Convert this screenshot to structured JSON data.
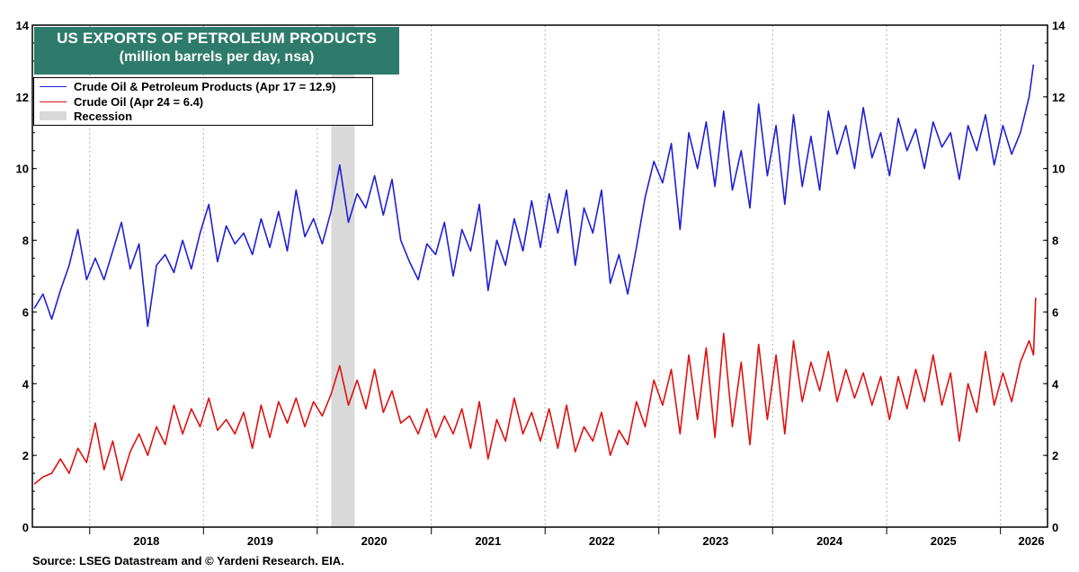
{
  "chart_data": {
    "type": "line",
    "title": "US EXPORTS OF PETROLEUM PRODUCTS",
    "subtitle": "(million barrels per day, nsa)",
    "xlabel": "",
    "ylabel": "",
    "ylim": [
      0,
      14
    ],
    "yticks": [
      "0",
      "2",
      "4",
      "6",
      "8",
      "10",
      "12",
      "14"
    ],
    "xlim": [
      "2017-07-01",
      "2026-06-01"
    ],
    "xticks": [
      "2018",
      "2019",
      "2020",
      "2021",
      "2022",
      "2023",
      "2024",
      "2025",
      "2026"
    ],
    "grid": true,
    "legend_position": "top-left",
    "recession": {
      "label": "Recession",
      "start": "2020-02-15",
      "end": "2020-04-30",
      "color": "#d9d9d9"
    },
    "series": [
      {
        "name": "Crude Oil & Petroleum Products",
        "legend_label": "Crude Oil & Petroleum Products  (Apr 17 = 12.9)",
        "color": "#1f1fd6",
        "points": [
          [
            "2017-07-07",
            6.1
          ],
          [
            "2017-08-04",
            6.5
          ],
          [
            "2017-09-01",
            5.8
          ],
          [
            "2017-09-29",
            6.6
          ],
          [
            "2017-10-27",
            7.3
          ],
          [
            "2017-11-24",
            8.3
          ],
          [
            "2017-12-22",
            6.9
          ],
          [
            "2018-01-19",
            7.5
          ],
          [
            "2018-02-16",
            6.9
          ],
          [
            "2018-03-16",
            7.7
          ],
          [
            "2018-04-13",
            8.5
          ],
          [
            "2018-05-11",
            7.2
          ],
          [
            "2018-06-08",
            7.9
          ],
          [
            "2018-07-06",
            5.6
          ],
          [
            "2018-08-03",
            7.3
          ],
          [
            "2018-08-31",
            7.6
          ],
          [
            "2018-09-28",
            7.1
          ],
          [
            "2018-10-26",
            8.0
          ],
          [
            "2018-11-23",
            7.2
          ],
          [
            "2018-12-21",
            8.2
          ],
          [
            "2019-01-18",
            9.0
          ],
          [
            "2019-02-15",
            7.4
          ],
          [
            "2019-03-15",
            8.4
          ],
          [
            "2019-04-12",
            7.9
          ],
          [
            "2019-05-10",
            8.2
          ],
          [
            "2019-06-07",
            7.6
          ],
          [
            "2019-07-05",
            8.6
          ],
          [
            "2019-08-02",
            7.8
          ],
          [
            "2019-08-30",
            8.8
          ],
          [
            "2019-09-27",
            7.7
          ],
          [
            "2019-10-25",
            9.4
          ],
          [
            "2019-11-22",
            8.1
          ],
          [
            "2019-12-20",
            8.6
          ],
          [
            "2020-01-17",
            7.9
          ],
          [
            "2020-02-14",
            8.8
          ],
          [
            "2020-03-13",
            10.1
          ],
          [
            "2020-04-10",
            8.5
          ],
          [
            "2020-05-08",
            9.3
          ],
          [
            "2020-06-05",
            8.9
          ],
          [
            "2020-07-03",
            9.8
          ],
          [
            "2020-07-31",
            8.7
          ],
          [
            "2020-08-28",
            9.7
          ],
          [
            "2020-09-25",
            8.0
          ],
          [
            "2020-10-23",
            7.4
          ],
          [
            "2020-11-20",
            6.9
          ],
          [
            "2020-12-18",
            7.9
          ],
          [
            "2021-01-15",
            7.6
          ],
          [
            "2021-02-12",
            8.5
          ],
          [
            "2021-03-12",
            7.0
          ],
          [
            "2021-04-09",
            8.3
          ],
          [
            "2021-05-07",
            7.7
          ],
          [
            "2021-06-04",
            9.0
          ],
          [
            "2021-07-02",
            6.6
          ],
          [
            "2021-07-30",
            8.0
          ],
          [
            "2021-08-27",
            7.3
          ],
          [
            "2021-09-24",
            8.6
          ],
          [
            "2021-10-22",
            7.7
          ],
          [
            "2021-11-19",
            9.1
          ],
          [
            "2021-12-17",
            7.8
          ],
          [
            "2022-01-14",
            9.3
          ],
          [
            "2022-02-11",
            8.2
          ],
          [
            "2022-03-11",
            9.4
          ],
          [
            "2022-04-08",
            7.3
          ],
          [
            "2022-05-06",
            8.9
          ],
          [
            "2022-06-03",
            8.2
          ],
          [
            "2022-07-01",
            9.4
          ],
          [
            "2022-07-29",
            6.8
          ],
          [
            "2022-08-26",
            7.6
          ],
          [
            "2022-09-23",
            6.5
          ],
          [
            "2022-10-21",
            7.8
          ],
          [
            "2022-11-18",
            9.2
          ],
          [
            "2022-12-16",
            10.2
          ],
          [
            "2023-01-13",
            9.6
          ],
          [
            "2023-02-10",
            10.7
          ],
          [
            "2023-03-10",
            8.3
          ],
          [
            "2023-04-07",
            11.0
          ],
          [
            "2023-05-05",
            10.0
          ],
          [
            "2023-06-02",
            11.3
          ],
          [
            "2023-06-30",
            9.5
          ],
          [
            "2023-07-28",
            11.6
          ],
          [
            "2023-08-25",
            9.4
          ],
          [
            "2023-09-22",
            10.5
          ],
          [
            "2023-10-20",
            8.9
          ],
          [
            "2023-11-17",
            11.8
          ],
          [
            "2023-12-15",
            9.8
          ],
          [
            "2024-01-12",
            11.2
          ],
          [
            "2024-02-09",
            9.0
          ],
          [
            "2024-03-08",
            11.5
          ],
          [
            "2024-04-05",
            9.5
          ],
          [
            "2024-05-03",
            10.9
          ],
          [
            "2024-05-31",
            9.4
          ],
          [
            "2024-06-28",
            11.6
          ],
          [
            "2024-07-26",
            10.4
          ],
          [
            "2024-08-23",
            11.2
          ],
          [
            "2024-09-20",
            10.0
          ],
          [
            "2024-10-18",
            11.7
          ],
          [
            "2024-11-15",
            10.3
          ],
          [
            "2024-12-13",
            11.0
          ],
          [
            "2025-01-10",
            9.8
          ],
          [
            "2025-02-07",
            11.4
          ],
          [
            "2025-03-07",
            10.5
          ],
          [
            "2025-04-04",
            11.1
          ],
          [
            "2025-05-02",
            10.0
          ],
          [
            "2025-05-30",
            11.3
          ],
          [
            "2025-06-27",
            10.6
          ],
          [
            "2025-07-25",
            11.0
          ],
          [
            "2025-08-22",
            9.7
          ],
          [
            "2025-09-19",
            11.2
          ],
          [
            "2025-10-17",
            10.5
          ],
          [
            "2025-11-14",
            11.5
          ],
          [
            "2025-12-12",
            10.1
          ],
          [
            "2026-01-09",
            11.2
          ],
          [
            "2026-02-06",
            10.4
          ],
          [
            "2026-03-06",
            11.0
          ],
          [
            "2026-04-03",
            12.0
          ],
          [
            "2026-04-17",
            12.9
          ]
        ]
      },
      {
        "name": "Crude Oil",
        "legend_label": "Crude Oil (Apr 24 = 6.4)",
        "color": "#e01010",
        "points": [
          [
            "2017-07-07",
            1.2
          ],
          [
            "2017-08-04",
            1.4
          ],
          [
            "2017-09-01",
            1.5
          ],
          [
            "2017-09-29",
            1.9
          ],
          [
            "2017-10-27",
            1.5
          ],
          [
            "2017-11-24",
            2.2
          ],
          [
            "2017-12-22",
            1.8
          ],
          [
            "2018-01-19",
            2.9
          ],
          [
            "2018-02-16",
            1.6
          ],
          [
            "2018-03-16",
            2.4
          ],
          [
            "2018-04-13",
            1.3
          ],
          [
            "2018-05-11",
            2.1
          ],
          [
            "2018-06-08",
            2.6
          ],
          [
            "2018-07-06",
            2.0
          ],
          [
            "2018-08-03",
            2.8
          ],
          [
            "2018-08-31",
            2.3
          ],
          [
            "2018-09-28",
            3.4
          ],
          [
            "2018-10-26",
            2.6
          ],
          [
            "2018-11-23",
            3.3
          ],
          [
            "2018-12-21",
            2.8
          ],
          [
            "2019-01-18",
            3.6
          ],
          [
            "2019-02-15",
            2.7
          ],
          [
            "2019-03-15",
            3.0
          ],
          [
            "2019-04-12",
            2.6
          ],
          [
            "2019-05-10",
            3.2
          ],
          [
            "2019-06-07",
            2.2
          ],
          [
            "2019-07-05",
            3.4
          ],
          [
            "2019-08-02",
            2.5
          ],
          [
            "2019-08-30",
            3.5
          ],
          [
            "2019-09-27",
            2.9
          ],
          [
            "2019-10-25",
            3.6
          ],
          [
            "2019-11-22",
            2.8
          ],
          [
            "2019-12-20",
            3.5
          ],
          [
            "2020-01-17",
            3.1
          ],
          [
            "2020-02-14",
            3.7
          ],
          [
            "2020-03-13",
            4.5
          ],
          [
            "2020-04-10",
            3.4
          ],
          [
            "2020-05-08",
            4.1
          ],
          [
            "2020-06-05",
            3.3
          ],
          [
            "2020-07-03",
            4.4
          ],
          [
            "2020-07-31",
            3.2
          ],
          [
            "2020-08-28",
            3.8
          ],
          [
            "2020-09-25",
            2.9
          ],
          [
            "2020-10-23",
            3.1
          ],
          [
            "2020-11-20",
            2.6
          ],
          [
            "2020-12-18",
            3.3
          ],
          [
            "2021-01-15",
            2.5
          ],
          [
            "2021-02-12",
            3.1
          ],
          [
            "2021-03-12",
            2.6
          ],
          [
            "2021-04-09",
            3.3
          ],
          [
            "2021-05-07",
            2.2
          ],
          [
            "2021-06-04",
            3.5
          ],
          [
            "2021-07-02",
            1.9
          ],
          [
            "2021-07-30",
            3.0
          ],
          [
            "2021-08-27",
            2.4
          ],
          [
            "2021-09-24",
            3.6
          ],
          [
            "2021-10-22",
            2.6
          ],
          [
            "2021-11-19",
            3.2
          ],
          [
            "2021-12-17",
            2.4
          ],
          [
            "2022-01-14",
            3.3
          ],
          [
            "2022-02-11",
            2.2
          ],
          [
            "2022-03-11",
            3.4
          ],
          [
            "2022-04-08",
            2.1
          ],
          [
            "2022-05-06",
            2.8
          ],
          [
            "2022-06-03",
            2.4
          ],
          [
            "2022-07-01",
            3.2
          ],
          [
            "2022-07-29",
            2.0
          ],
          [
            "2022-08-26",
            2.7
          ],
          [
            "2022-09-23",
            2.3
          ],
          [
            "2022-10-21",
            3.5
          ],
          [
            "2022-11-18",
            2.8
          ],
          [
            "2022-12-16",
            4.1
          ],
          [
            "2023-01-13",
            3.4
          ],
          [
            "2023-02-10",
            4.4
          ],
          [
            "2023-03-10",
            2.6
          ],
          [
            "2023-04-07",
            4.8
          ],
          [
            "2023-05-05",
            3.0
          ],
          [
            "2023-06-02",
            5.0
          ],
          [
            "2023-06-30",
            2.5
          ],
          [
            "2023-07-28",
            5.4
          ],
          [
            "2023-08-25",
            2.8
          ],
          [
            "2023-09-22",
            4.6
          ],
          [
            "2023-10-20",
            2.3
          ],
          [
            "2023-11-17",
            5.1
          ],
          [
            "2023-12-15",
            3.0
          ],
          [
            "2024-01-12",
            4.8
          ],
          [
            "2024-02-09",
            2.6
          ],
          [
            "2024-03-08",
            5.2
          ],
          [
            "2024-04-05",
            3.5
          ],
          [
            "2024-05-03",
            4.6
          ],
          [
            "2024-05-31",
            3.8
          ],
          [
            "2024-06-28",
            4.9
          ],
          [
            "2024-07-26",
            3.5
          ],
          [
            "2024-08-23",
            4.4
          ],
          [
            "2024-09-20",
            3.6
          ],
          [
            "2024-10-18",
            4.3
          ],
          [
            "2024-11-15",
            3.4
          ],
          [
            "2024-12-13",
            4.2
          ],
          [
            "2025-01-10",
            3.0
          ],
          [
            "2025-02-07",
            4.2
          ],
          [
            "2025-03-07",
            3.3
          ],
          [
            "2025-04-04",
            4.4
          ],
          [
            "2025-05-02",
            3.5
          ],
          [
            "2025-05-30",
            4.8
          ],
          [
            "2025-06-27",
            3.4
          ],
          [
            "2025-07-25",
            4.3
          ],
          [
            "2025-08-22",
            2.4
          ],
          [
            "2025-09-19",
            4.0
          ],
          [
            "2025-10-17",
            3.2
          ],
          [
            "2025-11-14",
            4.9
          ],
          [
            "2025-12-12",
            3.4
          ],
          [
            "2026-01-09",
            4.3
          ],
          [
            "2026-02-06",
            3.5
          ],
          [
            "2026-03-06",
            4.6
          ],
          [
            "2026-04-03",
            5.2
          ],
          [
            "2026-04-17",
            4.8
          ],
          [
            "2026-04-24",
            6.4
          ]
        ]
      }
    ]
  },
  "source": "Source: LSEG Datastream and © Yardeni Research. EIA."
}
